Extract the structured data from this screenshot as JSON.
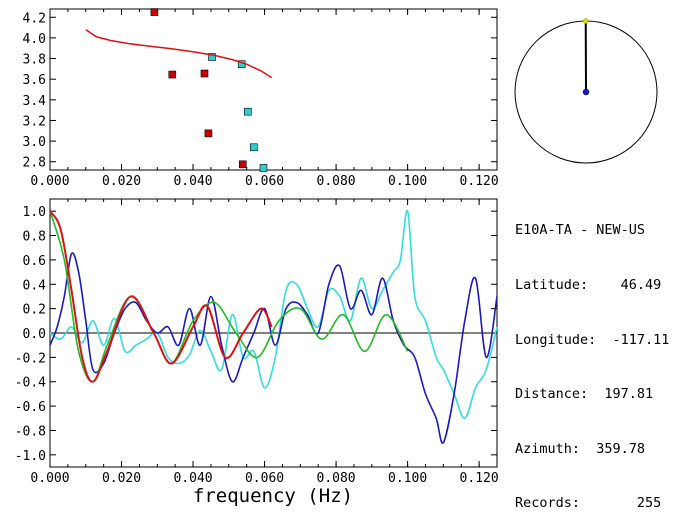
{
  "chart_data": [
    {
      "type": "scatter",
      "xlim": [
        0.0,
        0.125
      ],
      "ylim": [
        2.72,
        4.28
      ],
      "x_ticks": [
        "0.000",
        "0.020",
        "0.040",
        "0.060",
        "0.080",
        "0.100",
        "0.120"
      ],
      "y_ticks": [
        "2.8",
        "3.0",
        "3.2",
        "3.4",
        "3.6",
        "3.8",
        "4.0",
        "4.2"
      ],
      "series": [
        {
          "marker": "square",
          "color": "#cc0000",
          "points": [
            [
              0.0292,
              4.25
            ],
            [
              0.0342,
              3.645
            ],
            [
              0.0432,
              3.655
            ],
            [
              0.0443,
              3.075
            ],
            [
              0.0539,
              2.775
            ]
          ]
        },
        {
          "marker": "square",
          "color": "#33cccc",
          "points": [
            [
              0.0453,
              3.815
            ],
            [
              0.0536,
              3.745
            ],
            [
              0.0553,
              3.285
            ],
            [
              0.057,
              2.94
            ],
            [
              0.0597,
              2.74
            ]
          ]
        },
        {
          "line": true,
          "color": "#dd1111",
          "points": [
            [
              0.01,
              4.08
            ],
            [
              0.013,
              4.01
            ],
            [
              0.017,
              3.975
            ],
            [
              0.022,
              3.945
            ],
            [
              0.028,
              3.92
            ],
            [
              0.034,
              3.895
            ],
            [
              0.04,
              3.865
            ],
            [
              0.046,
              3.83
            ],
            [
              0.051,
              3.79
            ],
            [
              0.055,
              3.745
            ],
            [
              0.059,
              3.68
            ],
            [
              0.062,
              3.615
            ]
          ]
        }
      ]
    },
    {
      "type": "line",
      "xlim": [
        0.0,
        0.125
      ],
      "ylim": [
        -1.1,
        1.1
      ],
      "xlabel": "frequency (Hz)",
      "x_ticks": [
        "0.000",
        "0.020",
        "0.040",
        "0.060",
        "0.080",
        "0.100",
        "0.120"
      ],
      "y_ticks": [
        "1.0",
        "0.8",
        "0.6",
        "0.4",
        "0.2",
        "0.0",
        "-0.2",
        "-0.4",
        "-0.6",
        "-0.8",
        "-1.0"
      ],
      "series": [
        {
          "color": "#33dddd",
          "x": [
            0.0,
            0.003,
            0.006,
            0.009,
            0.012,
            0.015,
            0.018,
            0.021,
            0.024,
            0.027,
            0.03,
            0.033,
            0.036,
            0.039,
            0.042,
            0.045,
            0.048,
            0.051,
            0.054,
            0.057,
            0.06,
            0.063,
            0.066,
            0.069,
            0.072,
            0.075,
            0.078,
            0.081,
            0.084,
            0.087,
            0.09,
            0.093,
            0.096,
            0.098,
            0.1,
            0.102,
            0.105,
            0.108,
            0.11,
            0.113,
            0.116,
            0.119,
            0.122,
            0.125
          ],
          "y": [
            0.0,
            -0.05,
            0.05,
            -0.08,
            0.1,
            -0.1,
            0.12,
            -0.15,
            -0.1,
            -0.05,
            0.0,
            -0.2,
            -0.25,
            -0.18,
            0.02,
            -0.15,
            -0.3,
            0.15,
            -0.2,
            -0.15,
            -0.45,
            -0.2,
            0.35,
            0.4,
            0.2,
            0.05,
            0.35,
            0.3,
            0.1,
            0.45,
            0.2,
            0.35,
            0.5,
            0.6,
            1.0,
            0.3,
            0.1,
            -0.2,
            -0.3,
            -0.5,
            -0.7,
            -0.45,
            -0.3,
            0.05
          ]
        },
        {
          "color": "#1a1abb",
          "x": [
            0.0,
            0.002,
            0.004,
            0.006,
            0.008,
            0.01,
            0.012,
            0.015,
            0.018,
            0.021,
            0.024,
            0.027,
            0.03,
            0.033,
            0.036,
            0.039,
            0.042,
            0.045,
            0.048,
            0.051,
            0.054,
            0.057,
            0.06,
            0.063,
            0.066,
            0.069,
            0.072,
            0.075,
            0.078,
            0.081,
            0.084,
            0.087,
            0.09,
            0.093,
            0.096,
            0.099,
            0.102,
            0.105,
            0.108,
            0.11,
            0.113,
            0.116,
            0.119,
            0.122,
            0.125
          ],
          "y": [
            -0.1,
            0.05,
            0.3,
            0.65,
            0.5,
            0.1,
            -0.3,
            -0.25,
            0.0,
            0.2,
            0.25,
            0.1,
            0.0,
            0.05,
            -0.1,
            0.2,
            -0.1,
            0.3,
            -0.1,
            -0.4,
            -0.2,
            0.0,
            0.2,
            -0.1,
            0.2,
            0.25,
            0.15,
            0.0,
            0.4,
            0.55,
            0.2,
            0.35,
            0.15,
            0.45,
            0.1,
            -0.1,
            -0.2,
            -0.5,
            -0.7,
            -0.9,
            -0.5,
            0.1,
            0.45,
            -0.2,
            0.3
          ]
        },
        {
          "color": "#22bb22",
          "x": [
            0.0,
            0.004,
            0.008,
            0.012,
            0.016,
            0.0225,
            0.029,
            0.034,
            0.04,
            0.046,
            0.052,
            0.058,
            0.064,
            0.07,
            0.076,
            0.082,
            0.088,
            0.094,
            0.1
          ],
          "y": [
            1.0,
            0.6,
            -0.15,
            -0.4,
            -0.1,
            0.3,
            0.0,
            -0.25,
            0.1,
            0.25,
            0.0,
            -0.2,
            0.1,
            0.2,
            -0.05,
            0.15,
            -0.15,
            0.15,
            -0.15
          ]
        },
        {
          "color": "#dd1111",
          "x": [
            0.0,
            0.003,
            0.006,
            0.009,
            0.012,
            0.016,
            0.0225,
            0.029,
            0.034,
            0.04,
            0.044,
            0.049,
            0.054,
            0.059,
            0.062
          ],
          "y": [
            1.0,
            0.85,
            0.35,
            -0.2,
            -0.4,
            -0.15,
            0.3,
            0.0,
            -0.25,
            0.05,
            0.22,
            -0.2,
            0.0,
            0.2,
            0.05
          ]
        }
      ]
    },
    {
      "type": "polar",
      "azimuth_deg": 359.78,
      "colors": {
        "circle": "#000000",
        "needle": "#000000",
        "center": "#1a1abb",
        "tip": "#dddd00"
      }
    }
  ],
  "info": {
    "title": "E10A-TA - NEW-US",
    "rows": [
      {
        "label": "Latitude:",
        "value": "46.49"
      },
      {
        "label": "Longitude:",
        "value": "-117.11"
      },
      {
        "label": "Distance:",
        "value": "197.81"
      },
      {
        "label": "Azimuth:",
        "value": "359.78"
      },
      {
        "label": "Records:",
        "value": "255"
      }
    ]
  }
}
